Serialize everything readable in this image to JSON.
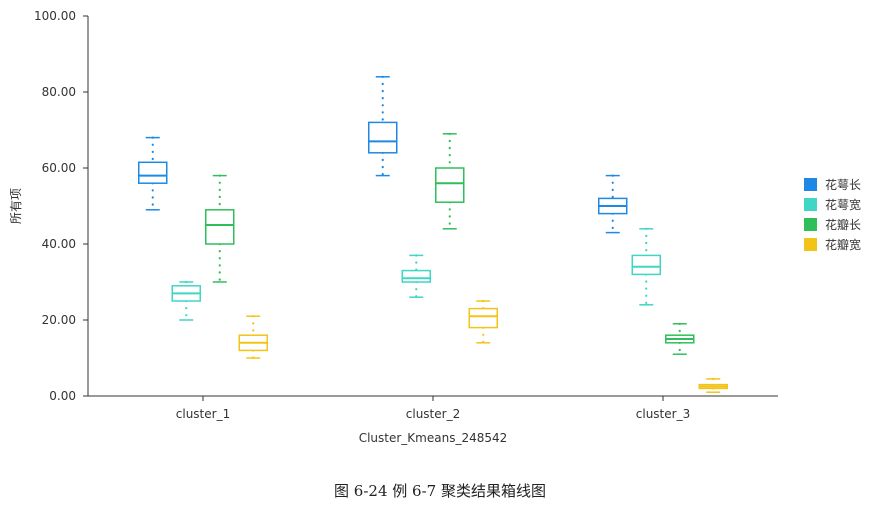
{
  "chart_data": {
    "type": "boxplot",
    "ylabel": "所有项",
    "xlabel": "Cluster_Kmeans_248542",
    "ylim": [
      0,
      100
    ],
    "yticks": [
      "0.00",
      "20.00",
      "40.00",
      "60.00",
      "80.00",
      "100.00"
    ],
    "ytick_values": [
      0,
      20,
      40,
      60,
      80,
      100
    ],
    "categories": [
      "cluster_1",
      "cluster_2",
      "cluster_3"
    ],
    "legend_position": "right",
    "series": [
      {
        "name": "花萼长",
        "color": "#1e88e5",
        "boxes": [
          {
            "min": 49,
            "q1": 56,
            "median": 58,
            "q3": 61.5,
            "max": 68
          },
          {
            "min": 58,
            "q1": 64,
            "median": 67,
            "q3": 72,
            "max": 84
          },
          {
            "min": 43,
            "q1": 48,
            "median": 50,
            "q3": 52,
            "max": 58
          }
        ]
      },
      {
        "name": "花萼宽",
        "color": "#40d6c4",
        "boxes": [
          {
            "min": 20,
            "q1": 25,
            "median": 27,
            "q3": 29,
            "max": 30
          },
          {
            "min": 26,
            "q1": 30,
            "median": 31,
            "q3": 33,
            "max": 37
          },
          {
            "min": 24,
            "q1": 32,
            "median": 34,
            "q3": 37,
            "max": 44
          }
        ]
      },
      {
        "name": "花瓣长",
        "color": "#2ebf5a",
        "boxes": [
          {
            "min": 30,
            "q1": 40,
            "median": 45,
            "q3": 49,
            "max": 58
          },
          {
            "min": 44,
            "q1": 51,
            "median": 56,
            "q3": 60,
            "max": 69
          },
          {
            "min": 11,
            "q1": 14,
            "median": 15,
            "q3": 16,
            "max": 19
          }
        ]
      },
      {
        "name": "花瓣宽",
        "color": "#f2c418",
        "boxes": [
          {
            "min": 10,
            "q1": 12,
            "median": 14,
            "q3": 16,
            "max": 21
          },
          {
            "min": 14,
            "q1": 18,
            "median": 21,
            "q3": 23,
            "max": 25
          },
          {
            "min": 1,
            "q1": 2,
            "median": 2.5,
            "q3": 3,
            "max": 4.5
          }
        ]
      }
    ]
  },
  "caption": "图 6-24 例 6-7 聚类结果箱线图"
}
